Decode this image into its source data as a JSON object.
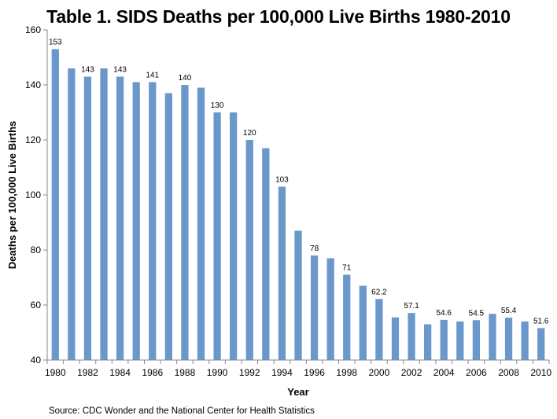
{
  "chart_data": {
    "type": "bar",
    "title": "Table 1. SIDS Deaths per 100,000 Live Births 1980-2010",
    "xlabel": "Year",
    "ylabel": "Deaths per 100,000 Live Births",
    "ylim": [
      40,
      160
    ],
    "yticks": [
      40,
      60,
      80,
      100,
      120,
      140,
      160
    ],
    "grid": false,
    "color": "#6a98cb",
    "categories": [
      "1980",
      "1981",
      "1982",
      "1983",
      "1984",
      "1985",
      "1986",
      "1987",
      "1988",
      "1989",
      "1990",
      "1991",
      "1992",
      "1993",
      "1994",
      "1995",
      "1996",
      "1997",
      "1998",
      "1999",
      "2000",
      "2001",
      "2002",
      "2003",
      "2004",
      "2005",
      "2006",
      "2007",
      "2008",
      "2009",
      "2010"
    ],
    "x_tick_labels": [
      "1980",
      "",
      "1982",
      "",
      "1984",
      "",
      "1986",
      "",
      "1988",
      "",
      "1990",
      "",
      "1992",
      "",
      "1994",
      "",
      "1996",
      "",
      "1998",
      "",
      "2000",
      "",
      "2002",
      "",
      "2004",
      "",
      "2006",
      "",
      "2008",
      "",
      "2010"
    ],
    "values": [
      153,
      146,
      143,
      146,
      143,
      141,
      141,
      137,
      140,
      139,
      130,
      130,
      120,
      117,
      103,
      87,
      78,
      77,
      71,
      67,
      62.2,
      55.5,
      57.1,
      53,
      54.6,
      54,
      54.5,
      56.8,
      55.4,
      54,
      51.6
    ],
    "data_labels": [
      "153",
      "",
      "143",
      "",
      "143",
      "",
      "141",
      "",
      "140",
      "",
      "130",
      "",
      "120",
      "",
      "103",
      "",
      "78",
      "",
      "71",
      "",
      "62.2",
      "",
      "57.1",
      "",
      "54.6",
      "",
      "54.5",
      "",
      "55.4",
      "",
      "51.6"
    ]
  },
  "footer": {
    "source": "Source: CDC Wonder and the National Center for Health Statistics"
  }
}
